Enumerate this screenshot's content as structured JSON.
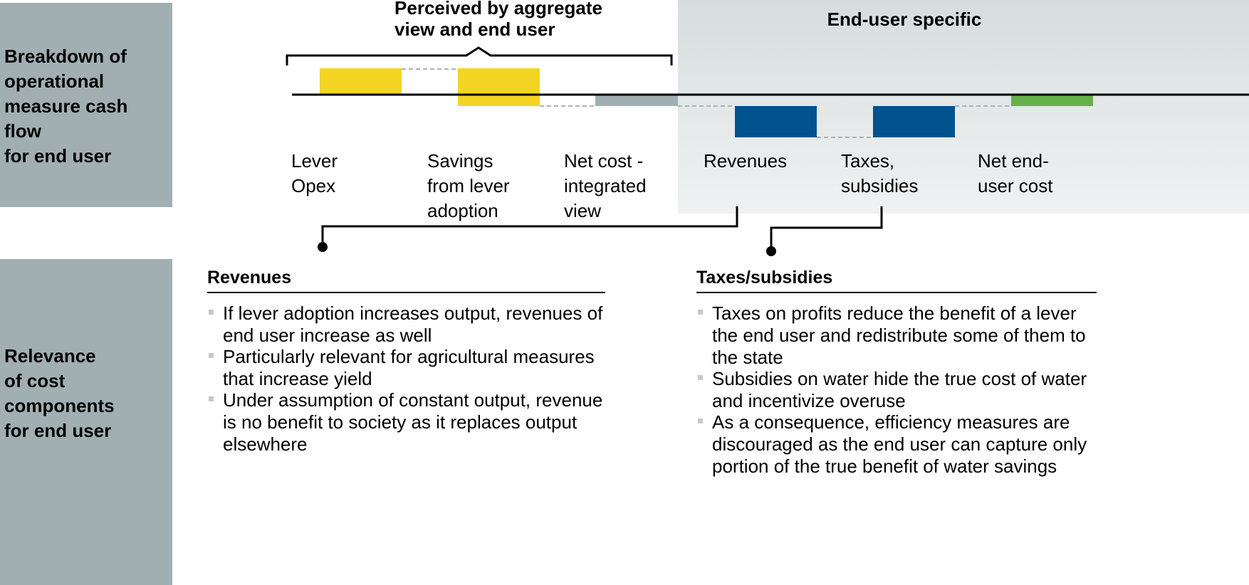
{
  "rows": [
    {
      "label": [
        "Breakdown of",
        "operational",
        "measure cash",
        "flow",
        "for end user"
      ]
    },
    {
      "label": [
        "Relevance",
        "of cost",
        "components",
        "for end user"
      ]
    }
  ],
  "groups": {
    "aggregate": [
      "Perceived by aggregate",
      "view and end user"
    ],
    "end_user": "End-user specific"
  },
  "columns": [
    [
      "Lever",
      "Opex"
    ],
    [
      "Savings",
      "from lever",
      "adoption"
    ],
    [
      "Net cost -",
      "integrated",
      "view"
    ],
    [
      "Revenues"
    ],
    [
      "Taxes,",
      "subsidies"
    ],
    [
      "Net end-",
      "user cost"
    ]
  ],
  "sections": [
    {
      "title": "Revenues",
      "bullets": [
        [
          "If lever adoption increases output, revenues of",
          "end user increase as well"
        ],
        [
          "Particularly relevant for agricultural measures",
          "that increase yield"
        ],
        [
          "Under assumption of constant output, revenue",
          "is no benefit to society as it replaces output",
          "elsewhere"
        ]
      ]
    },
    {
      "title": "Taxes/subsidies",
      "bullets": [
        [
          "Taxes on profits reduce the benefit of a lever",
          "the end user and redistribute some of them to",
          "the state"
        ],
        [
          "Subsidies on water hide the true cost of water",
          "and incentivize overuse"
        ],
        [
          "As a consequence, efficiency measures are",
          "discouraged as the end user can capture only",
          "portion of the true benefit of water savings"
        ]
      ]
    }
  ]
}
